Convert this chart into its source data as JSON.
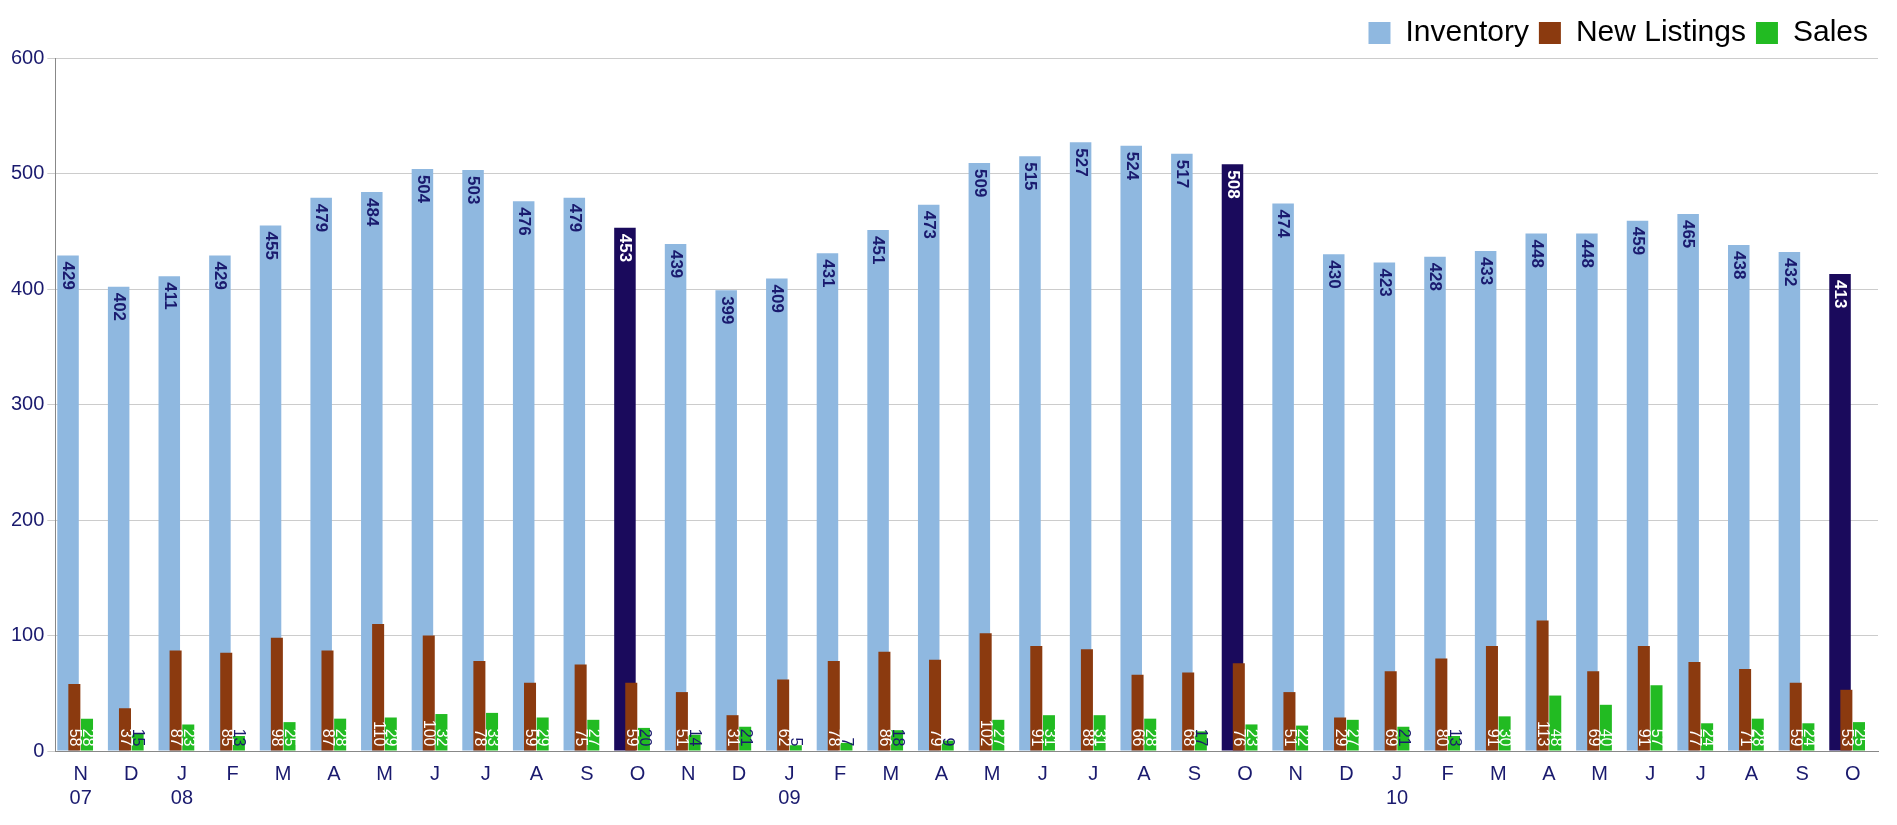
{
  "chart_data": {
    "type": "bar",
    "categories": [
      "N\n07",
      "D",
      "J\n08",
      "F",
      "M",
      "A",
      "M",
      "J",
      "J",
      "A",
      "S",
      "O",
      "N",
      "D",
      "J\n09",
      "F",
      "M",
      "A",
      "M",
      "J",
      "J",
      "A",
      "S",
      "O",
      "N",
      "D",
      "J\n10",
      "F",
      "M",
      "A",
      "M",
      "J",
      "J",
      "A",
      "S",
      "O"
    ],
    "series": [
      {
        "name": "Inventory",
        "color": "#8fb8e0",
        "colors": [
          "#8fb8e0",
          "#8fb8e0",
          "#8fb8e0",
          "#8fb8e0",
          "#8fb8e0",
          "#8fb8e0",
          "#8fb8e0",
          "#8fb8e0",
          "#8fb8e0",
          "#8fb8e0",
          "#8fb8e0",
          "#1a0a5c",
          "#8fb8e0",
          "#8fb8e0",
          "#8fb8e0",
          "#8fb8e0",
          "#8fb8e0",
          "#8fb8e0",
          "#8fb8e0",
          "#8fb8e0",
          "#8fb8e0",
          "#8fb8e0",
          "#8fb8e0",
          "#1a0a5c",
          "#8fb8e0",
          "#8fb8e0",
          "#8fb8e0",
          "#8fb8e0",
          "#8fb8e0",
          "#8fb8e0",
          "#8fb8e0",
          "#8fb8e0",
          "#8fb8e0",
          "#8fb8e0",
          "#8fb8e0",
          "#1a0a5c"
        ],
        "values": [
          429,
          402,
          411,
          429,
          455,
          479,
          484,
          504,
          503,
          476,
          479,
          453,
          439,
          399,
          409,
          431,
          451,
          473,
          509,
          515,
          527,
          524,
          517,
          508,
          474,
          430,
          423,
          428,
          433,
          448,
          448,
          459,
          465,
          438,
          432,
          413
        ]
      },
      {
        "name": "New Listings",
        "color": "#8b3a0f",
        "values": [
          58,
          37,
          87,
          85,
          98,
          87,
          110,
          100,
          78,
          59,
          75,
          59,
          51,
          31,
          62,
          78,
          86,
          79,
          102,
          91,
          88,
          66,
          68,
          76,
          51,
          29,
          69,
          80,
          91,
          113,
          69,
          91,
          77,
          71,
          59,
          53
        ]
      },
      {
        "name": "Sales",
        "color": "#22bb22",
        "values": [
          28,
          15,
          23,
          13,
          25,
          28,
          29,
          32,
          33,
          29,
          27,
          20,
          14,
          21,
          5,
          7,
          18,
          9,
          27,
          31,
          31,
          28,
          17,
          23,
          22,
          27,
          21,
          13,
          30,
          48,
          40,
          57,
          24,
          28,
          24,
          25
        ]
      }
    ],
    "ylim": [
      0,
      600
    ],
    "yticks": [
      0,
      100,
      200,
      300,
      400,
      500,
      600
    ],
    "grid": "y",
    "legend": "top right",
    "data_labels": true
  }
}
